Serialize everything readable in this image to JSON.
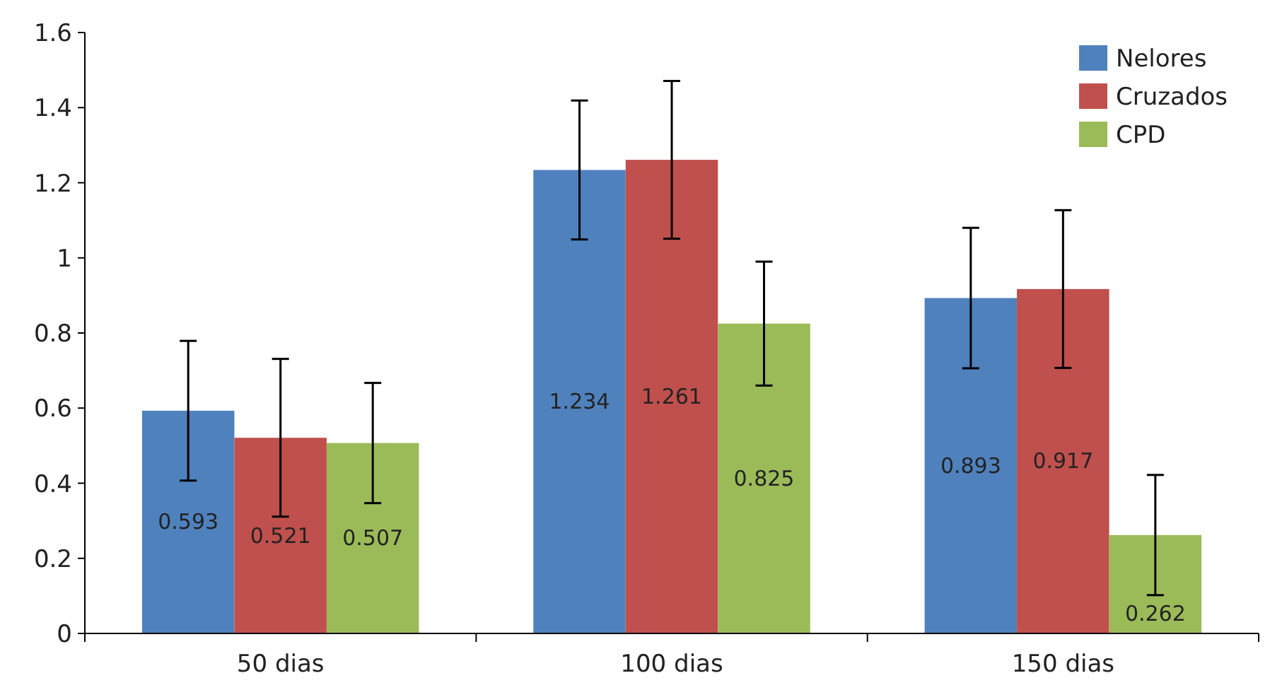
{
  "chart_data": {
    "type": "bar",
    "categories": [
      "50 dias",
      "100 dias",
      "150 dias"
    ],
    "series": [
      {
        "name": "Nelores",
        "color": "#4f81bd",
        "values": [
          0.593,
          1.234,
          0.893
        ],
        "errors": [
          0.186,
          0.185,
          0.187
        ]
      },
      {
        "name": "Cruzados",
        "color": "#c0504d",
        "values": [
          0.521,
          1.261,
          0.917
        ],
        "errors": [
          0.21,
          0.21,
          0.21
        ]
      },
      {
        "name": "CPD",
        "color": "#9bbb59",
        "values": [
          0.507,
          0.825,
          0.262
        ],
        "errors": [
          0.16,
          0.165,
          0.16
        ]
      }
    ],
    "ylim": [
      0,
      1.6
    ],
    "yticks": [
      0,
      0.2,
      0.4,
      0.6,
      0.8,
      1,
      1.2,
      1.4,
      1.6
    ],
    "data_labels": true,
    "legend": "top right",
    "grid": false
  }
}
